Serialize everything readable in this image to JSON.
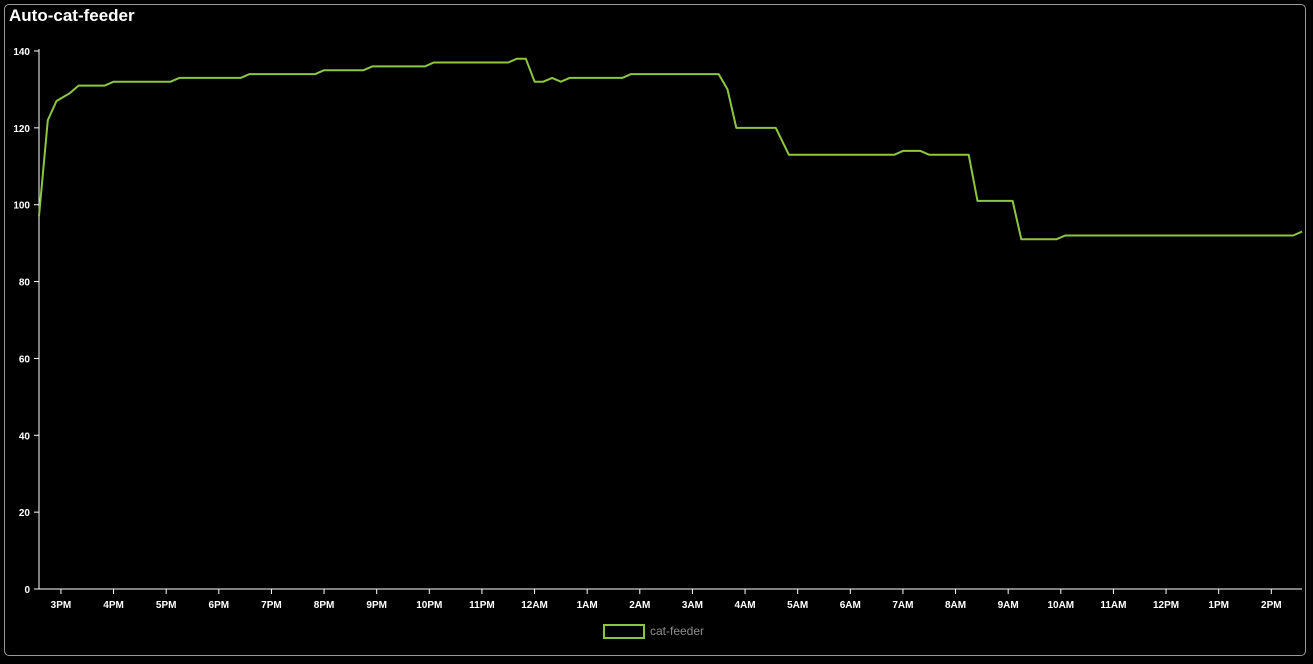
{
  "panel": {
    "title": "Auto-cat-feeder"
  },
  "colors": {
    "background": "#000000",
    "series": "#8dc63f",
    "axis": "#ffffff",
    "legend_text": "#8f8f8f"
  },
  "chart_data": {
    "type": "line",
    "title": "Auto-cat-feeder",
    "xlabel": "",
    "ylabel": "",
    "ylim": [
      0,
      140
    ],
    "yticks": [
      0,
      20,
      40,
      60,
      80,
      100,
      120,
      140
    ],
    "xlim": [
      "14:35",
      "14:35 next day"
    ],
    "xticks": [
      "3PM",
      "4PM",
      "5PM",
      "6PM",
      "7PM",
      "8PM",
      "9PM",
      "10PM",
      "11PM",
      "12AM",
      "1AM",
      "2AM",
      "3AM",
      "4AM",
      "5AM",
      "6AM",
      "7AM",
      "8AM",
      "9AM",
      "10AM",
      "11AM",
      "12PM",
      "1PM",
      "2PM"
    ],
    "grid": false,
    "legend_position": "bottom-center",
    "series": [
      {
        "name": "cat-feeder",
        "points": [
          [
            "14:35",
            97
          ],
          [
            "14:45",
            122
          ],
          [
            "14:55",
            127
          ],
          [
            "15:10",
            129
          ],
          [
            "15:20",
            131
          ],
          [
            "15:50",
            131
          ],
          [
            "16:00",
            132
          ],
          [
            "17:05",
            132
          ],
          [
            "17:15",
            133
          ],
          [
            "18:25",
            133
          ],
          [
            "18:35",
            134
          ],
          [
            "19:50",
            134
          ],
          [
            "20:00",
            135
          ],
          [
            "20:45",
            135
          ],
          [
            "20:55",
            136
          ],
          [
            "21:55",
            136
          ],
          [
            "22:05",
            137
          ],
          [
            "23:30",
            137
          ],
          [
            "23:40",
            138
          ],
          [
            "23:50",
            138
          ],
          [
            "24:00",
            132
          ],
          [
            "24:10",
            132
          ],
          [
            "24:20",
            133
          ],
          [
            "24:30",
            132
          ],
          [
            "24:40",
            133
          ],
          [
            "25:40",
            133
          ],
          [
            "25:50",
            134
          ],
          [
            "27:30",
            134
          ],
          [
            "27:40",
            130
          ],
          [
            "27:50",
            120
          ],
          [
            "28:35",
            120
          ],
          [
            "28:50",
            113
          ],
          [
            "30:50",
            113
          ],
          [
            "31:00",
            114
          ],
          [
            "31:20",
            114
          ],
          [
            "31:30",
            113
          ],
          [
            "32:15",
            113
          ],
          [
            "32:25",
            101
          ],
          [
            "33:05",
            101
          ],
          [
            "33:15",
            91
          ],
          [
            "33:55",
            91
          ],
          [
            "34:05",
            92
          ],
          [
            "38:25",
            92
          ],
          [
            "38:35",
            93
          ]
        ]
      }
    ]
  }
}
